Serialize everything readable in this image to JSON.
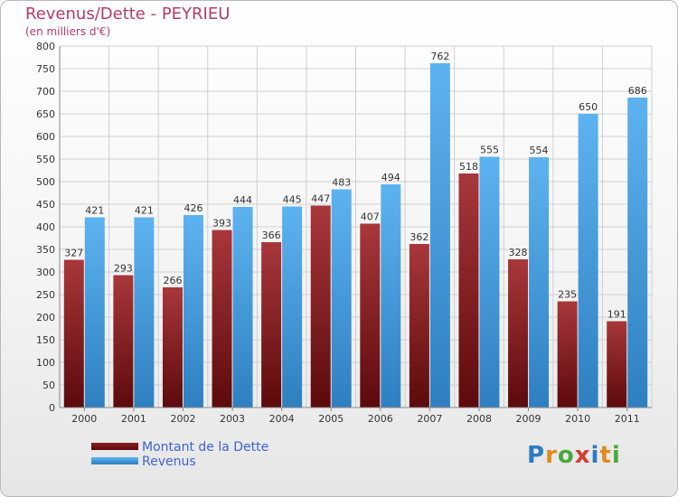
{
  "header": {
    "title": "Revenus/Dette - PEYRIEU",
    "subtitle": "(en milliers d'€)"
  },
  "logo": {
    "letters": [
      {
        "ch": "P",
        "color": "#2a7bc4"
      },
      {
        "ch": "r",
        "color": "#e08a1e"
      },
      {
        "ch": "o",
        "color": "#4ba83a"
      },
      {
        "ch": "x",
        "color": "#d23c2e"
      },
      {
        "ch": "i",
        "color": "#2a7bc4"
      },
      {
        "ch": "t",
        "color": "#e08a1e"
      },
      {
        "ch": "i",
        "color": "#4ba83a"
      }
    ]
  },
  "chart_data": {
    "type": "bar",
    "title": "Revenus/Dette - PEYRIEU",
    "subtitle": "(en milliers d'€)",
    "categories": [
      "2000",
      "2001",
      "2002",
      "2003",
      "2004",
      "2005",
      "2006",
      "2007",
      "2008",
      "2009",
      "2010",
      "2011"
    ],
    "series": [
      {
        "name": "Montant de la Dette",
        "color": "#7a1418",
        "values": [
          327,
          293,
          266,
          393,
          366,
          447,
          407,
          362,
          518,
          328,
          235,
          191
        ]
      },
      {
        "name": "Revenus",
        "color": "#4aa3e4",
        "values": [
          421,
          421,
          426,
          444,
          445,
          483,
          494,
          762,
          555,
          554,
          650,
          686
        ]
      }
    ],
    "ylim": [
      0,
      800
    ],
    "yticks": [
      0,
      50,
      100,
      150,
      200,
      250,
      300,
      350,
      400,
      450,
      500,
      550,
      600,
      650,
      700,
      750,
      800
    ],
    "grid": true,
    "legend_position": "bottom-left"
  }
}
